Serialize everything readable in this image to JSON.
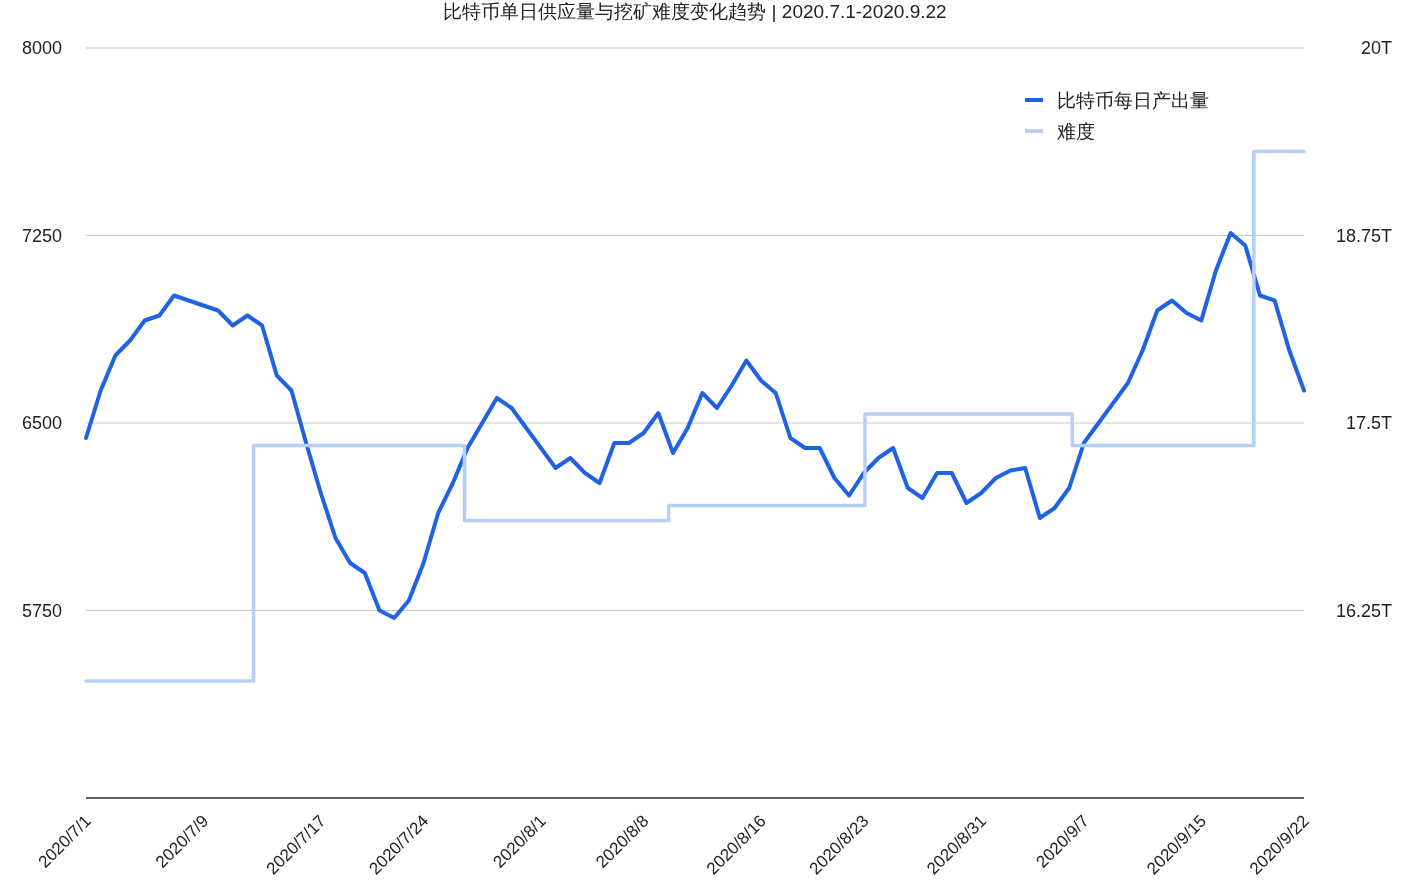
{
  "chart_data": {
    "type": "line",
    "title": "比特币单日供应量与挖矿难度变化趋势 | 2020.7.1-2020.9.22",
    "ylim": [
      5000,
      8000
    ],
    "yticks": [
      {
        "value": 5000,
        "label": null
      },
      5750,
      6500,
      7250,
      8000
    ],
    "y2lim": [
      15,
      20
    ],
    "y2ticks": [
      {
        "value": 15,
        "label": null
      },
      {
        "value": 16.25,
        "label": "16.25T"
      },
      {
        "value": 17.5,
        "label": "17.5T"
      },
      {
        "value": 18.75,
        "label": "18.75T"
      },
      {
        "value": 20,
        "label": "20T"
      }
    ],
    "xlim": [
      "2020-07-01",
      "2020-09-22"
    ],
    "xticks": [
      {
        "value": "2020-07-01",
        "label": "2020/7/1"
      },
      {
        "value": "2020-07-09",
        "label": "2020/7/9"
      },
      {
        "value": "2020-07-17",
        "label": "2020/7/17"
      },
      {
        "value": "2020-07-24",
        "label": "2020/7/24"
      },
      {
        "value": "2020-08-01",
        "label": "2020/8/1"
      },
      {
        "value": "2020-08-08",
        "label": "2020/8/8"
      },
      {
        "value": "2020-08-16",
        "label": "2020/8/16"
      },
      {
        "value": "2020-08-23",
        "label": "2020/8/23"
      },
      {
        "value": "2020-08-31",
        "label": "2020/8/31"
      },
      {
        "value": "2020-09-07",
        "label": "2020/9/7"
      },
      {
        "value": "2020-09-15",
        "label": "2020/9/15"
      },
      {
        "value": "2020-09-22",
        "label": "2020/9/22"
      }
    ],
    "grid": "y",
    "legend": "top right",
    "series": [
      {
        "name": "比特币每日产出量",
        "color": "#1f62e6",
        "x": [
          "2020-07-01",
          "2020-07-02",
          "2020-07-03",
          "2020-07-04",
          "2020-07-05",
          "2020-07-06",
          "2020-07-07",
          "2020-07-08",
          "2020-07-09",
          "2020-07-10",
          "2020-07-11",
          "2020-07-12",
          "2020-07-13",
          "2020-07-14",
          "2020-07-15",
          "2020-07-16",
          "2020-07-17",
          "2020-07-18",
          "2020-07-19",
          "2020-07-20",
          "2020-07-21",
          "2020-07-22",
          "2020-07-23",
          "2020-07-24",
          "2020-07-25",
          "2020-07-26",
          "2020-07-27",
          "2020-07-28",
          "2020-07-29",
          "2020-07-30",
          "2020-07-31",
          "2020-08-01",
          "2020-08-02",
          "2020-08-03",
          "2020-08-04",
          "2020-08-05",
          "2020-08-06",
          "2020-08-07",
          "2020-08-08",
          "2020-08-09",
          "2020-08-10",
          "2020-08-11",
          "2020-08-12",
          "2020-08-13",
          "2020-08-14",
          "2020-08-15",
          "2020-08-16",
          "2020-08-17",
          "2020-08-18",
          "2020-08-19",
          "2020-08-20",
          "2020-08-21",
          "2020-08-22",
          "2020-08-23",
          "2020-08-24",
          "2020-08-25",
          "2020-08-26",
          "2020-08-27",
          "2020-08-28",
          "2020-08-29",
          "2020-08-30",
          "2020-08-31",
          "2020-09-01",
          "2020-09-02",
          "2020-09-03",
          "2020-09-04",
          "2020-09-05",
          "2020-09-06",
          "2020-09-07",
          "2020-09-08",
          "2020-09-09",
          "2020-09-10",
          "2020-09-11",
          "2020-09-12",
          "2020-09-13",
          "2020-09-14",
          "2020-09-15",
          "2020-09-16",
          "2020-09-17",
          "2020-09-18",
          "2020-09-19",
          "2020-09-20",
          "2020-09-21",
          "2020-09-22"
        ],
        "values": [
          6440,
          6630,
          6770,
          6830,
          6910,
          6930,
          7010,
          6990,
          6970,
          6950,
          6890,
          6930,
          6890,
          6690,
          6630,
          6420,
          6220,
          6040,
          5940,
          5900,
          5750,
          5720,
          5790,
          5940,
          6140,
          6260,
          6400,
          6500,
          6600,
          6560,
          6480,
          6400,
          6320,
          6360,
          6300,
          6260,
          6420,
          6420,
          6460,
          6540,
          6380,
          6480,
          6620,
          6560,
          6650,
          6750,
          6670,
          6620,
          6440,
          6400,
          6400,
          6280,
          6210,
          6300,
          6360,
          6400,
          6240,
          6200,
          6300,
          6300,
          6180,
          6220,
          6280,
          6310,
          6320,
          6120,
          6160,
          6240,
          6420,
          6500,
          6580,
          6660,
          6790,
          6950,
          6990,
          6940,
          6910,
          7110,
          7260,
          7210,
          7010,
          6990,
          6790,
          6630
        ]
      },
      {
        "name": "难度",
        "color": "#b6cff6",
        "type": "step",
        "axis": "y2",
        "x": [
          "2020-07-01",
          "2020-07-12T10:00",
          "2020-07-26T19:00",
          "2020-08-09T17:00",
          "2020-08-23T02:00",
          "2020-09-06T05:00",
          "2020-09-18T14:00",
          "2020-09-22"
        ],
        "values": [
          15.78,
          17.35,
          16.85,
          16.95,
          17.56,
          17.35,
          19.31,
          19.31
        ]
      }
    ]
  }
}
